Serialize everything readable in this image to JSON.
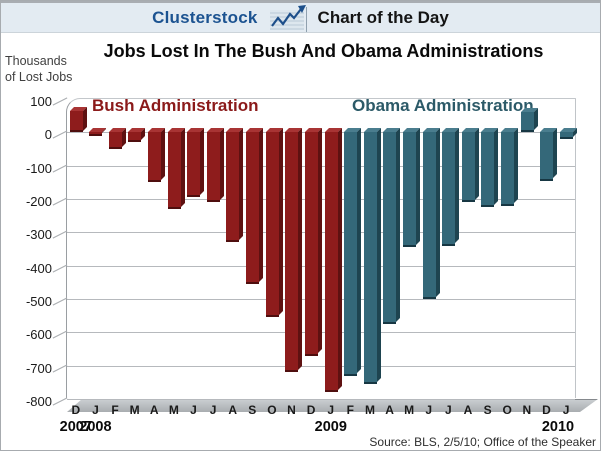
{
  "header": {
    "brand": "Clusterstock",
    "brand_color": "#1c5391",
    "title": "Chart of the Day",
    "icon": "line-chart-icon"
  },
  "y_unit": {
    "line1": "Thousands",
    "line2": "of Lost Jobs"
  },
  "source_note": "Source: BLS, 2/5/10; Office of the Speaker",
  "chart_data": {
    "type": "bar",
    "title": "Jobs Lost In The Bush And Obama Administrations",
    "ylabel": "Thousands of Lost Jobs",
    "ylim": [
      -800,
      100
    ],
    "ytick_step": 100,
    "grid": true,
    "legend_position": "top-inside",
    "categories": [
      "D",
      "J",
      "F",
      "M",
      "A",
      "M",
      "J",
      "J",
      "A",
      "S",
      "O",
      "N",
      "D",
      "J",
      "F",
      "M",
      "A",
      "M",
      "J",
      "J",
      "A",
      "S",
      "O",
      "N",
      "D",
      "J"
    ],
    "year_markers": [
      {
        "label": "2007",
        "index": 0
      },
      {
        "label": "2008",
        "index": 1
      },
      {
        "label": "2009",
        "index": 13
      },
      {
        "label": "2010",
        "index": 25
      }
    ],
    "series": [
      {
        "name": "Bush Administration",
        "color": "#8e1c1c",
        "period": "Dec 2007 - Jan 2009",
        "values": [
          65,
          -10,
          -50,
          -30,
          -150,
          -230,
          -195,
          -210,
          -330,
          -455,
          -555,
          -720,
          -670,
          -780
        ]
      },
      {
        "name": "Obama Administration",
        "color": "#346879",
        "period": "Feb 2009 - Jan 2010",
        "values": [
          -730,
          -755,
          -575,
          -345,
          -500,
          -340,
          -210,
          -225,
          -220,
          60,
          -145,
          -20
        ]
      }
    ]
  }
}
